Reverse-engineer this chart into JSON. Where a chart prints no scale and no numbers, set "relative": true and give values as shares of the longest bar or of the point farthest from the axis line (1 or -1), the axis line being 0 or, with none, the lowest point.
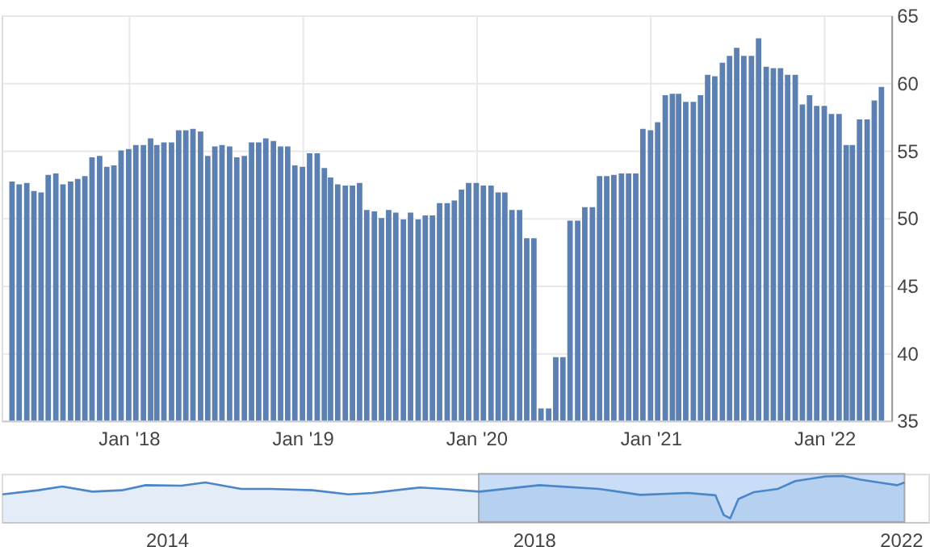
{
  "chart_data": [
    {
      "type": "bar",
      "color": "#5b80b1",
      "grid": true,
      "x": [
        "2017-05-01",
        "2017-05-16",
        "2017-06-01",
        "2017-06-16",
        "2017-07-01",
        "2017-07-16",
        "2017-08-01",
        "2017-08-16",
        "2017-09-01",
        "2017-09-16",
        "2017-10-01",
        "2017-10-16",
        "2017-11-01",
        "2017-11-16",
        "2017-12-01",
        "2017-12-16",
        "2018-01-01",
        "2018-01-16",
        "2018-02-01",
        "2018-02-16",
        "2018-03-01",
        "2018-03-16",
        "2018-04-01",
        "2018-04-16",
        "2018-05-01",
        "2018-05-16",
        "2018-06-01",
        "2018-06-16",
        "2018-07-01",
        "2018-07-16",
        "2018-08-01",
        "2018-08-16",
        "2018-09-01",
        "2018-09-16",
        "2018-10-01",
        "2018-10-16",
        "2018-11-01",
        "2018-11-16",
        "2018-12-01",
        "2018-12-16",
        "2019-01-01",
        "2019-01-16",
        "2019-02-01",
        "2019-02-16",
        "2019-03-01",
        "2019-03-16",
        "2019-04-01",
        "2019-04-16",
        "2019-05-01",
        "2019-05-16",
        "2019-06-01",
        "2019-06-16",
        "2019-07-01",
        "2019-07-16",
        "2019-08-01",
        "2019-08-16",
        "2019-09-01",
        "2019-09-16",
        "2019-10-01",
        "2019-10-16",
        "2019-11-01",
        "2019-11-16",
        "2019-12-01",
        "2019-12-16",
        "2020-01-01",
        "2020-01-16",
        "2020-02-01",
        "2020-02-16",
        "2020-03-01",
        "2020-03-16",
        "2020-04-01",
        "2020-04-16",
        "2020-05-01",
        "2020-05-16",
        "2020-06-01",
        "2020-06-16",
        "2020-07-01",
        "2020-07-16",
        "2020-08-01",
        "2020-08-16",
        "2020-09-01",
        "2020-09-16",
        "2020-10-01",
        "2020-10-16",
        "2020-11-01",
        "2020-11-16",
        "2020-12-01",
        "2020-12-16",
        "2021-01-01",
        "2021-01-16",
        "2021-02-01",
        "2021-02-16",
        "2021-03-01",
        "2021-03-16",
        "2021-04-01",
        "2021-04-16",
        "2021-05-01",
        "2021-05-16",
        "2021-06-01",
        "2021-06-16",
        "2021-07-01",
        "2021-07-16",
        "2021-08-01",
        "2021-08-16",
        "2021-09-01",
        "2021-09-16",
        "2021-10-01",
        "2021-10-16",
        "2021-11-01",
        "2021-11-16",
        "2021-12-01",
        "2021-12-16",
        "2022-01-01",
        "2022-01-16",
        "2022-02-01",
        "2022-02-16",
        "2022-03-01",
        "2022-03-16",
        "2022-04-01",
        "2022-04-16",
        "2022-05-01"
      ],
      "values": [
        52.7,
        52.5,
        52.6,
        52.0,
        51.9,
        53.2,
        53.3,
        52.5,
        52.7,
        52.9,
        53.1,
        54.5,
        54.6,
        53.8,
        53.9,
        55.0,
        55.1,
        55.4,
        55.4,
        55.9,
        55.4,
        55.6,
        55.6,
        56.5,
        56.5,
        56.6,
        56.4,
        54.6,
        55.3,
        55.4,
        55.3,
        54.5,
        54.6,
        55.6,
        55.6,
        55.9,
        55.7,
        55.3,
        55.3,
        53.9,
        53.8,
        54.8,
        54.8,
        53.7,
        53.0,
        52.5,
        52.4,
        52.4,
        52.6,
        50.6,
        50.5,
        50.0,
        50.6,
        50.4,
        49.9,
        50.4,
        49.9,
        50.2,
        50.2,
        51.1,
        51.1,
        51.3,
        52.1,
        52.6,
        52.6,
        52.4,
        52.4,
        51.9,
        51.9,
        50.6,
        50.6,
        48.5,
        48.5,
        35.9,
        35.9,
        39.7,
        39.7,
        49.8,
        49.8,
        50.8,
        50.8,
        53.1,
        53.1,
        53.2,
        53.3,
        53.3,
        53.3,
        56.6,
        56.5,
        57.1,
        59.1,
        59.2,
        59.2,
        58.6,
        58.6,
        59.1,
        60.6,
        60.5,
        61.5,
        62.0,
        62.6,
        62.0,
        62.0,
        63.3,
        61.2,
        61.1,
        61.1,
        60.6,
        60.6,
        58.4,
        59.1,
        58.3,
        58.3,
        57.7,
        57.7,
        55.4,
        55.4,
        57.3,
        57.3,
        58.7,
        59.7
      ],
      "xlim": [
        "2017-04-26",
        "2022-05-05"
      ],
      "xticks": [
        {
          "value": "2018-01-01",
          "label": "Jan '18"
        },
        {
          "value": "2019-01-01",
          "label": "Jan '19"
        },
        {
          "value": "2020-01-01",
          "label": "Jan '20"
        },
        {
          "value": "2021-01-01",
          "label": "Jan '21"
        },
        {
          "value": "2022-01-01",
          "label": "Jan '22"
        }
      ],
      "ylim": [
        35,
        65
      ],
      "yticks": [
        35,
        40,
        45,
        50,
        55,
        60,
        65
      ]
    },
    {
      "type": "area",
      "relative": true,
      "color": "#4a86c8",
      "tick_labels": "x",
      "x": [
        2012.21,
        2012.6,
        2012.86,
        2013.19,
        2013.51,
        2013.77,
        2014.16,
        2014.42,
        2014.81,
        2015.13,
        2015.59,
        2015.98,
        2016.24,
        2016.76,
        2017.02,
        2017.41,
        2018.06,
        2018.71,
        2019.16,
        2019.68,
        2019.98,
        2020.07,
        2020.14,
        2020.23,
        2020.4,
        2020.66,
        2020.85,
        2021.18,
        2021.37,
        2021.56,
        2021.76,
        2021.96,
        2022.04
      ],
      "values": [
        0.6,
        0.69,
        0.77,
        0.66,
        0.69,
        0.8,
        0.79,
        0.86,
        0.72,
        0.72,
        0.69,
        0.6,
        0.63,
        0.75,
        0.72,
        0.66,
        0.8,
        0.72,
        0.59,
        0.63,
        0.58,
        0.15,
        0.08,
        0.5,
        0.65,
        0.72,
        0.89,
        0.99,
        1,
        0.92,
        0.86,
        0.8,
        0.86
      ],
      "xlim": [
        2012.2,
        2022.3
      ],
      "xticks": [
        2014,
        2018,
        2022
      ],
      "bands": [
        {
          "axis": "x",
          "from": 2017.4,
          "to": 2022.04,
          "color": "#bcd6f5"
        }
      ]
    }
  ]
}
